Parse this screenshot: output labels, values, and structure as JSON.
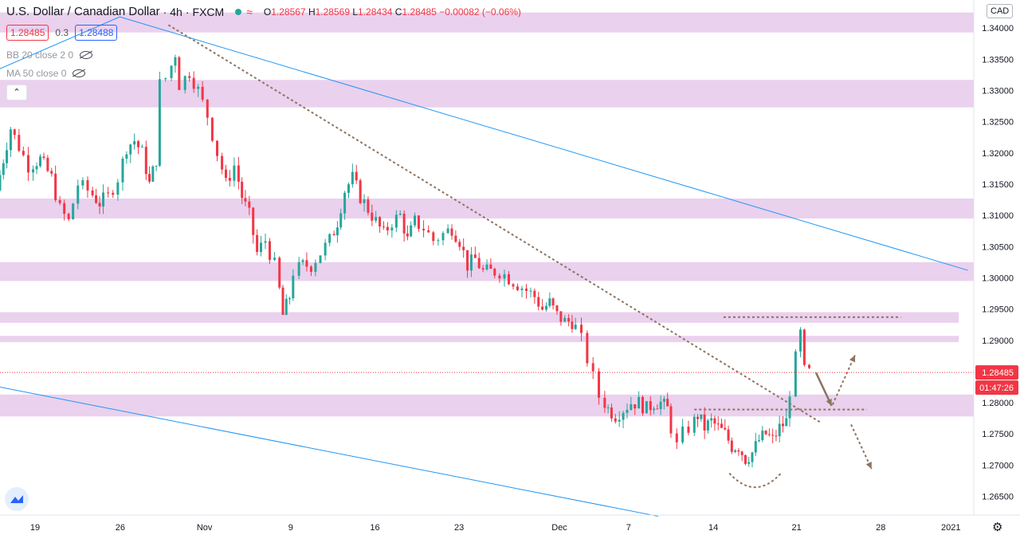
{
  "header": {
    "symbol": "U.S. Dollar / Canadian Dollar",
    "interval": "4h",
    "exchange": "FXCM",
    "status_icon": "wave-icon",
    "wave_glyph": "≈",
    "ohlc": {
      "o_label": "O",
      "o": "1.28567",
      "h_label": "H",
      "h": "1.28569",
      "l_label": "L",
      "l": "1.28434",
      "c_label": "C",
      "c": "1.28485",
      "change": "−0.00082 (−0.06%)"
    }
  },
  "trade": {
    "sell": "1.28485",
    "spread": "0.3",
    "buy": "1.28488"
  },
  "indicators": [
    {
      "label": "BB 20 close 2 0"
    },
    {
      "label": "MA 50 close 0"
    }
  ],
  "collapse_glyph": "⌃",
  "currency": "CAD",
  "settings_glyph": "⚙",
  "colors": {
    "up": "#26a69a",
    "down": "#f23645",
    "zone": "#e1bee7",
    "trend": "#2196f3",
    "dashed": "#8d7460"
  },
  "chart_data": {
    "type": "candlestick",
    "ylim": [
      1.262,
      1.3445
    ],
    "y_ticks": [
      1.34,
      1.335,
      1.33,
      1.325,
      1.32,
      1.315,
      1.31,
      1.305,
      1.3,
      1.295,
      1.29,
      1.285,
      1.28,
      1.275,
      1.27,
      1.265
    ],
    "y_tick_labels": [
      "1.34000",
      "1.33500",
      "1.33000",
      "1.32500",
      "1.32000",
      "1.31500",
      "1.31000",
      "1.30500",
      "1.30000",
      "1.29500",
      "1.29000",
      "1.28500",
      "1.28000",
      "1.27500",
      "1.27000",
      "1.26500"
    ],
    "x_ticks": [
      {
        "label": "19",
        "pos": 0.036
      },
      {
        "label": "26",
        "pos": 0.1235
      },
      {
        "label": "Nov",
        "pos": 0.21
      },
      {
        "label": "9",
        "pos": 0.2985
      },
      {
        "label": "16",
        "pos": 0.385
      },
      {
        "label": "23",
        "pos": 0.4715
      },
      {
        "label": "Dec",
        "pos": 0.5745
      },
      {
        "label": "7",
        "pos": 0.6455
      },
      {
        "label": "14",
        "pos": 0.7325
      },
      {
        "label": "21",
        "pos": 0.818
      },
      {
        "label": "28",
        "pos": 0.9045
      },
      {
        "label": "2021",
        "pos": 0.9765
      }
    ],
    "last_price": 1.28485,
    "last_price_label": "1.28485",
    "countdown": "01:47:26",
    "zones": [
      {
        "from": 1.3393,
        "to": 1.3425
      },
      {
        "from": 1.3273,
        "to": 1.3317
      },
      {
        "from": 1.3095,
        "to": 1.3127
      },
      {
        "from": 1.2995,
        "to": 1.3025
      },
      {
        "from": 1.2928,
        "to": 1.2945,
        "end": 0.9845
      },
      {
        "from": 1.2897,
        "to": 1.2907,
        "end": 0.9845
      },
      {
        "from": 1.2778,
        "to": 1.2813
      }
    ],
    "trendlines": [
      {
        "x1": 0.0,
        "y1": 1.3335,
        "x2": 0.123,
        "y2": 1.3418
      },
      {
        "x1": 0.123,
        "y1": 1.3418,
        "x2": 0.994,
        "y2": 1.3012
      },
      {
        "x1": 0.0,
        "y1": 1.2825,
        "x2": 0.676,
        "y2": 1.2618
      }
    ],
    "dashed_lines": [
      {
        "x1": 0.173,
        "y1": 1.3405,
        "x2": 0.842,
        "y2": 1.2769
      },
      {
        "x1": 0.743,
        "y1": 1.2937,
        "x2": 0.925,
        "y2": 1.2937
      },
      {
        "x1": 0.713,
        "y1": 1.2789,
        "x2": 0.89,
        "y2": 1.2789
      }
    ],
    "arrows": [
      {
        "x1": 0.838,
        "y1": 1.2848,
        "x2": 0.854,
        "y2": 1.2795,
        "style": "solid"
      },
      {
        "x1": 0.855,
        "y1": 1.2797,
        "x2": 0.878,
        "y2": 1.2876,
        "style": "dashed"
      },
      {
        "x1": 0.874,
        "y1": 1.2765,
        "x2": 0.895,
        "y2": 1.2694,
        "style": "dashed"
      }
    ],
    "arc": {
      "x1": 0.749,
      "x2": 0.802,
      "top": 1.2687,
      "bottom": 1.2665
    },
    "candles_anchor": [
      [
        0.0,
        1.314
      ],
      [
        0.007,
        1.319
      ],
      [
        0.015,
        1.324
      ],
      [
        0.024,
        1.321
      ],
      [
        0.034,
        1.318
      ],
      [
        0.045,
        1.319
      ],
      [
        0.057,
        1.316
      ],
      [
        0.066,
        1.311
      ],
      [
        0.075,
        1.309
      ],
      [
        0.085,
        1.315
      ],
      [
        0.095,
        1.314
      ],
      [
        0.106,
        1.312
      ],
      [
        0.116,
        1.313
      ],
      [
        0.126,
        1.316
      ],
      [
        0.134,
        1.321
      ],
      [
        0.142,
        1.322
      ],
      [
        0.15,
        1.32
      ],
      [
        0.157,
        1.315
      ],
      [
        0.164,
        1.319
      ],
      [
        0.17,
        1.331
      ],
      [
        0.176,
        1.332
      ],
      [
        0.184,
        1.336
      ],
      [
        0.19,
        1.331
      ],
      [
        0.199,
        1.333
      ],
      [
        0.208,
        1.33
      ],
      [
        0.218,
        1.326
      ],
      [
        0.228,
        1.32
      ],
      [
        0.236,
        1.315
      ],
      [
        0.245,
        1.318
      ],
      [
        0.252,
        1.313
      ],
      [
        0.26,
        1.31
      ],
      [
        0.268,
        1.304
      ],
      [
        0.277,
        1.306
      ],
      [
        0.287,
        1.302
      ],
      [
        0.294,
        1.294
      ],
      [
        0.301,
        1.297
      ],
      [
        0.307,
        1.301
      ],
      [
        0.315,
        1.302
      ],
      [
        0.324,
        1.302
      ],
      [
        0.334,
        1.304
      ],
      [
        0.343,
        1.306
      ],
      [
        0.35,
        1.309
      ],
      [
        0.358,
        1.314
      ],
      [
        0.366,
        1.316
      ],
      [
        0.374,
        1.313
      ],
      [
        0.382,
        1.311
      ],
      [
        0.39,
        1.309
      ],
      [
        0.398,
        1.307
      ],
      [
        0.407,
        1.309
      ],
      [
        0.415,
        1.31
      ],
      [
        0.422,
        1.306
      ],
      [
        0.43,
        1.309
      ],
      [
        0.44,
        1.308
      ],
      [
        0.45,
        1.306
      ],
      [
        0.46,
        1.307
      ],
      [
        0.468,
        1.308
      ],
      [
        0.476,
        1.306
      ],
      [
        0.484,
        1.302
      ],
      [
        0.492,
        1.303
      ],
      [
        0.5,
        1.301
      ],
      [
        0.508,
        1.301
      ],
      [
        0.518,
        1.301
      ],
      [
        0.527,
        1.3
      ],
      [
        0.536,
        1.299
      ],
      [
        0.545,
        1.298
      ],
      [
        0.553,
        1.297
      ],
      [
        0.561,
        1.295
      ],
      [
        0.568,
        1.296
      ],
      [
        0.576,
        1.294
      ],
      [
        0.584,
        1.293
      ],
      [
        0.591,
        1.293
      ],
      [
        0.597,
        1.292
      ],
      [
        0.603,
        1.29
      ],
      [
        0.609,
        1.287
      ],
      [
        0.615,
        1.284
      ],
      [
        0.621,
        1.281
      ],
      [
        0.628,
        1.279
      ],
      [
        0.636,
        1.278
      ],
      [
        0.644,
        1.279
      ],
      [
        0.652,
        1.28
      ],
      [
        0.66,
        1.28
      ],
      [
        0.668,
        1.279
      ],
      [
        0.675,
        1.28
      ],
      [
        0.682,
        1.28
      ],
      [
        0.689,
        1.279
      ],
      [
        0.695,
        1.276
      ],
      [
        0.701,
        1.273
      ],
      [
        0.707,
        1.275
      ],
      [
        0.713,
        1.276
      ],
      [
        0.72,
        1.278
      ],
      [
        0.727,
        1.276
      ],
      [
        0.734,
        1.277
      ],
      [
        0.741,
        1.276
      ],
      [
        0.748,
        1.275
      ],
      [
        0.755,
        1.273
      ],
      [
        0.762,
        1.273
      ],
      [
        0.769,
        1.271
      ],
      [
        0.776,
        1.272
      ],
      [
        0.783,
        1.274
      ],
      [
        0.79,
        1.275
      ],
      [
        0.797,
        1.274
      ],
      [
        0.804,
        1.276
      ],
      [
        0.811,
        1.277
      ],
      [
        0.817,
        1.282
      ],
      [
        0.822,
        1.287
      ],
      [
        0.826,
        1.291
      ],
      [
        0.831,
        1.285
      ],
      [
        0.836,
        1.2848
      ]
    ]
  }
}
